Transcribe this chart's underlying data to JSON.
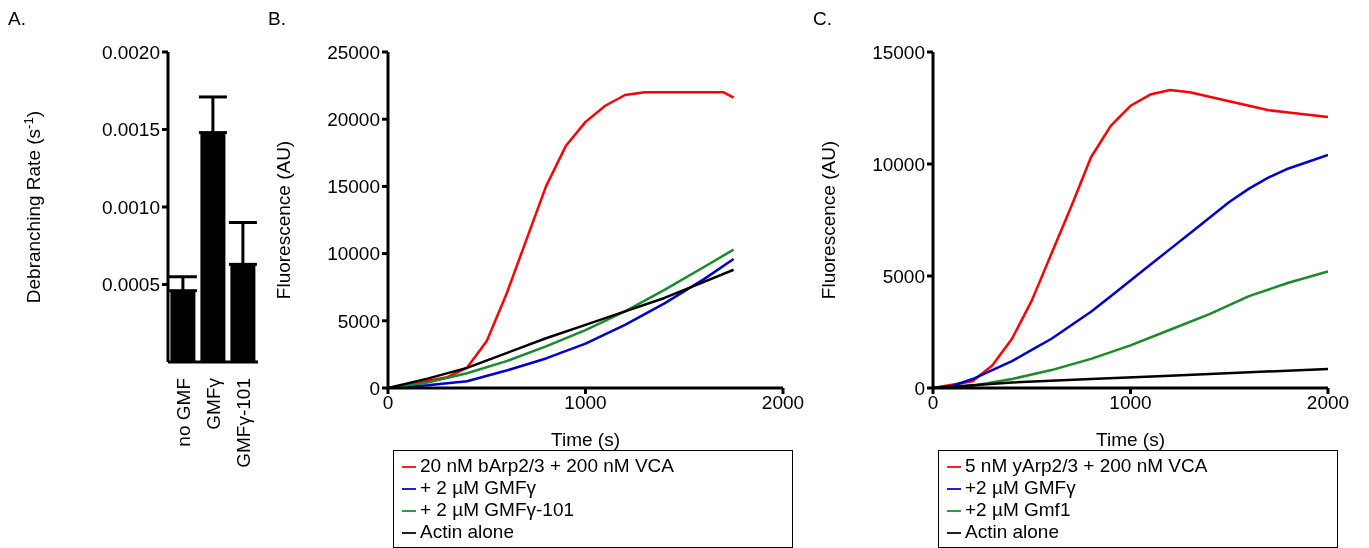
{
  "chart_data": [
    {
      "type": "bar",
      "title": "A.",
      "ylabel": "Debranching Rate (s$^{-1}$)",
      "categories": [
        "no GMF",
        "GMFγ",
        "GMFγ-101"
      ],
      "values": [
        0.00046,
        0.00148,
        0.00063
      ],
      "errors": [
        [
          0.00046,
          0.00055
        ],
        [
          0.00148,
          0.00171
        ],
        [
          0.00063,
          0.0009
        ]
      ],
      "color": "#000000",
      "ylim": [
        0,
        0.002
      ],
      "yticks": [
        {
          "value": 0.0005,
          "label": "0.0005"
        },
        {
          "value": 0.001,
          "label": "0.0010"
        },
        {
          "value": 0.0015,
          "label": "0.0015"
        },
        {
          "value": 0.002,
          "label": "0.0020"
        }
      ]
    },
    {
      "type": "line",
      "title": "B.",
      "xlabel": "Time (s)",
      "ylabel": "Fluorescence (AU)",
      "xlim": [
        0,
        2000
      ],
      "xticks": [
        0,
        1000,
        2000
      ],
      "ylim": [
        0,
        25000
      ],
      "yticks": [
        0,
        5000,
        10000,
        15000,
        20000,
        25000
      ],
      "legend": "bottom",
      "marker": "none",
      "series": [
        {
          "name": "20 nM bArp2/3 + 200 nM VCA",
          "color": "#ff0000",
          "x": [
            0,
            300,
            400,
            500,
            600,
            700,
            800,
            900,
            1000,
            1100,
            1200,
            1300,
            1400,
            1500,
            1600,
            1700,
            1750
          ],
          "values": [
            0,
            800,
            1500,
            3500,
            7000,
            11000,
            15000,
            18000,
            19800,
            21000,
            21800,
            22000,
            22000,
            22000,
            22000,
            22000,
            21600
          ]
        },
        {
          "name": "+ 2 µM GMFγ",
          "color": "#0000cc",
          "x": [
            0,
            200,
            400,
            600,
            800,
            1000,
            1200,
            1400,
            1600,
            1750
          ],
          "values": [
            0,
            200,
            500,
            1300,
            2200,
            3300,
            4700,
            6300,
            8100,
            9600
          ]
        },
        {
          "name": "+ 2 µM GMFγ-101",
          "color": "#1a8a2a",
          "x": [
            0,
            200,
            400,
            600,
            800,
            1000,
            1200,
            1400,
            1600,
            1750
          ],
          "values": [
            0,
            400,
            1100,
            2000,
            3100,
            4300,
            5700,
            7300,
            9000,
            10300
          ]
        },
        {
          "name": "Actin alone",
          "color": "#000000",
          "x": [
            0,
            200,
            400,
            600,
            800,
            1000,
            1200,
            1400,
            1600,
            1750
          ],
          "values": [
            0,
            700,
            1500,
            2600,
            3700,
            4700,
            5700,
            6700,
            7900,
            8800
          ]
        }
      ]
    },
    {
      "type": "line",
      "title": "C.",
      "xlabel": "Time (s)",
      "ylabel": "Fluorescence (AU)",
      "xlim": [
        0,
        2000
      ],
      "xticks": [
        0,
        1000,
        2000
      ],
      "ylim": [
        0,
        15000
      ],
      "yticks": [
        0,
        5000,
        10000,
        15000
      ],
      "legend": "bottom",
      "marker": "none",
      "series": [
        {
          "name": "5 nM yArp2/3 + 200 nM VCA",
          "color": "#ff0000",
          "x": [
            0,
            200,
            300,
            400,
            500,
            600,
            700,
            800,
            900,
            1000,
            1100,
            1200,
            1300,
            1400,
            1500,
            1600,
            1700,
            1800,
            1900,
            2000
          ],
          "values": [
            0,
            300,
            1000,
            2200,
            3900,
            6000,
            8100,
            10300,
            11700,
            12600,
            13100,
            13300,
            13200,
            13000,
            12800,
            12600,
            12400,
            12300,
            12200,
            12100
          ]
        },
        {
          "name": "+2 µM GMFγ",
          "color": "#0000cc",
          "x": [
            0,
            100,
            200,
            300,
            400,
            500,
            600,
            700,
            800,
            900,
            1000,
            1100,
            1200,
            1300,
            1400,
            1500,
            1600,
            1700,
            1800,
            1900,
            2000
          ],
          "values": [
            0,
            100,
            400,
            800,
            1200,
            1700,
            2200,
            2800,
            3400,
            4100,
            4800,
            5500,
            6200,
            6900,
            7600,
            8300,
            8900,
            9400,
            9800,
            10100,
            10400
          ]
        },
        {
          "name": "+2 µM Gmf1",
          "color": "#1a8a2a",
          "x": [
            0,
            200,
            400,
            600,
            800,
            1000,
            1200,
            1400,
            1600,
            1800,
            2000
          ],
          "values": [
            0,
            100,
            400,
            800,
            1300,
            1900,
            2600,
            3300,
            4100,
            4700,
            5200
          ]
        },
        {
          "name": "Actin alone",
          "color": "#000000",
          "x": [
            0,
            400,
            800,
            1200,
            1600,
            2000
          ],
          "values": [
            0,
            250,
            400,
            550,
            700,
            850
          ]
        }
      ]
    }
  ]
}
